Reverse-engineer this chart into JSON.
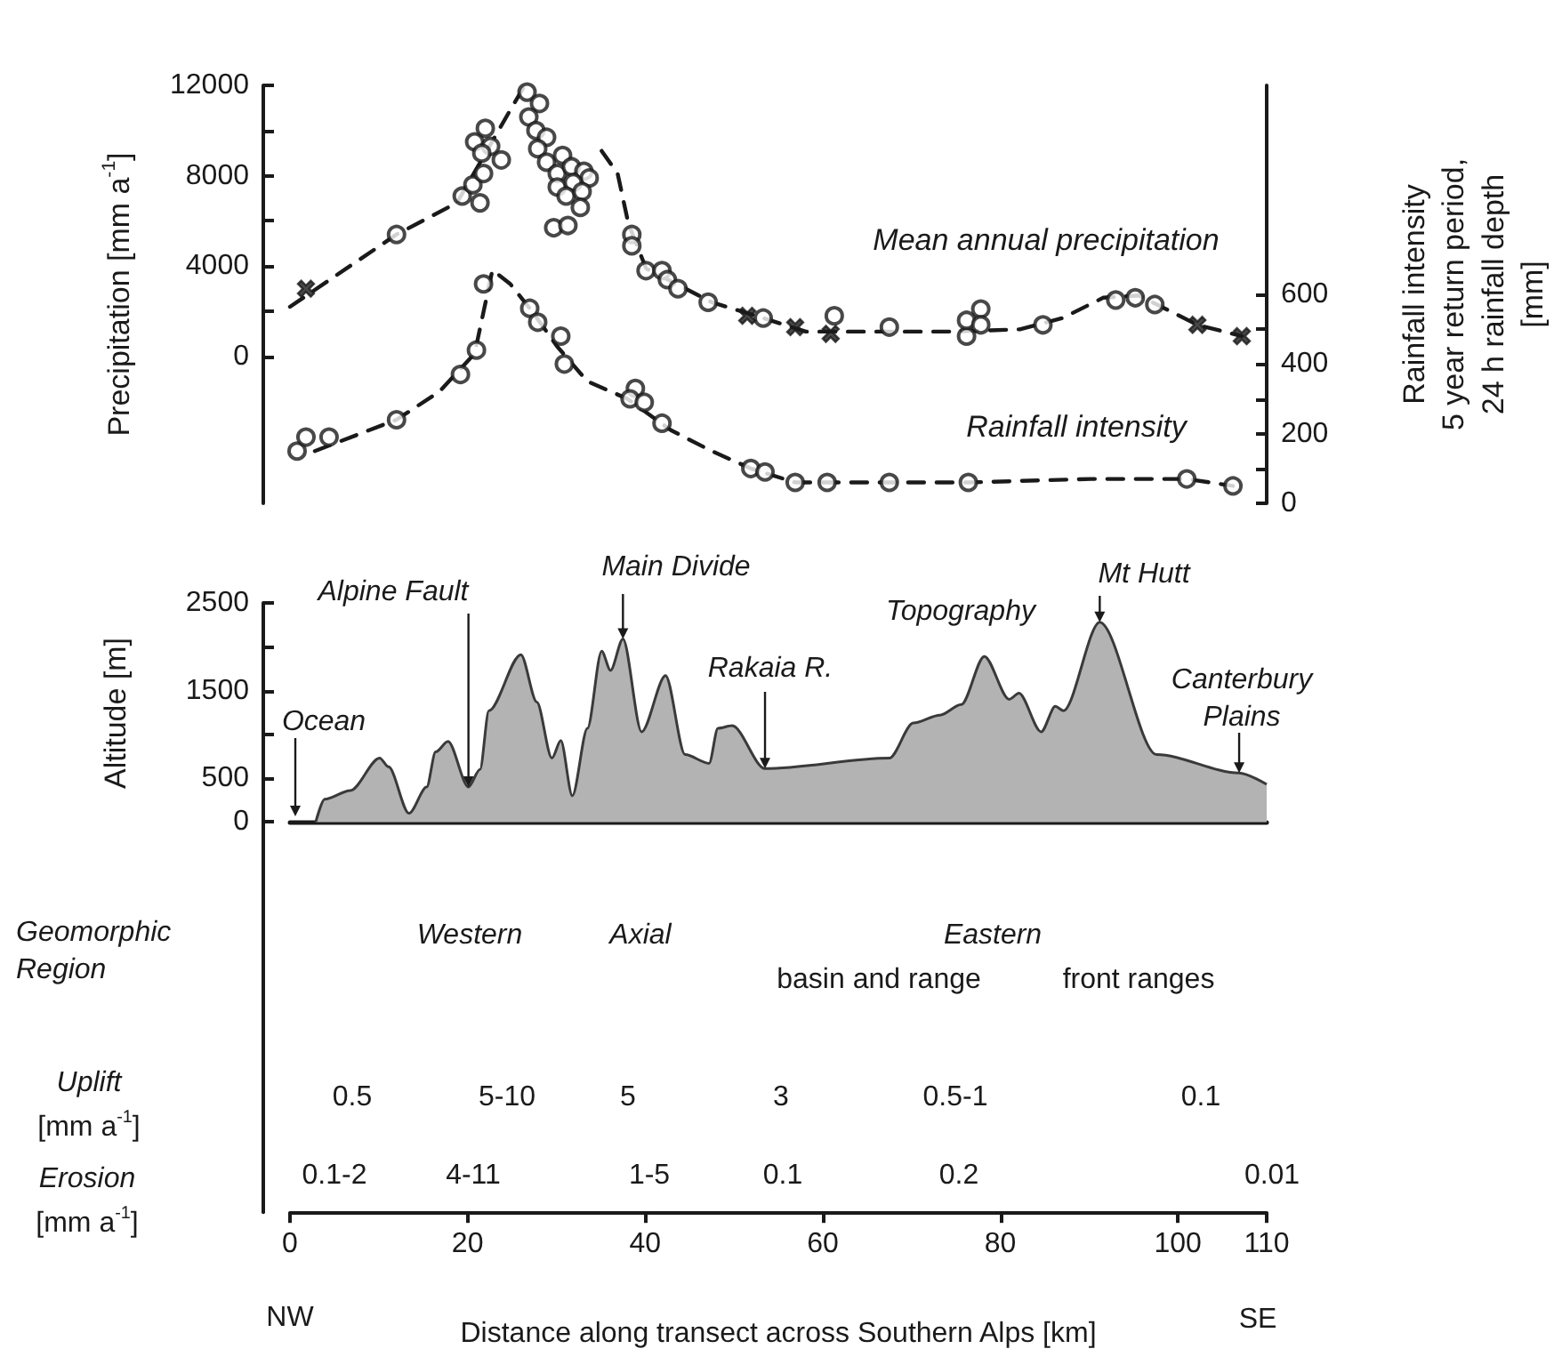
{
  "chart_data": [
    {
      "type": "scatter",
      "ylabel": "Precipitation [mm a$^{-1}$]",
      "y2label": "Rainfall intensity\n5 year return period,\n24 h rainfall depth\n[mm]",
      "annotations": [
        "Mean annual precipitation",
        "Rainfall intensity"
      ],
      "xlim": [
        0,
        110
      ],
      "ylim": [
        -6500,
        12000
      ],
      "yticks": [
        0,
        {
          "value": 2000,
          "label": null
        },
        4000,
        {
          "value": 6000,
          "label": null
        },
        8000,
        {
          "value": 10000,
          "label": null
        },
        12000
      ],
      "y2lim": [
        0,
        1200
      ],
      "y2ticks": [
        0,
        {
          "value": 100,
          "label": null
        },
        200,
        {
          "value": 300,
          "label": null
        },
        400,
        {
          "value": 500,
          "label": null
        },
        600
      ],
      "tick_labels": "y",
      "series": [
        {
          "type": "scatter",
          "marker": "circle",
          "color": "#1a1a1a",
          "x": [
            12.0,
            19.4,
            21.4,
            20.6,
            21.8,
            20.8,
            22.0,
            22.6,
            21.6,
            23.8,
            26.7,
            28.1,
            26.9,
            27.7,
            28.9,
            27.9,
            28.9,
            30.7,
            30.1,
            30.1,
            31.7,
            33.1,
            33.7,
            31.9,
            31.1,
            32.9,
            32.7,
            29.7,
            31.3,
            38.5,
            38.5,
            40.1,
            41.9,
            42.5,
            43.7,
            47.1,
            53.3,
            61.3,
            67.5,
            76.2,
            76.2,
            77.8,
            77.8,
            84.8,
            93.0,
            95.2,
            97.4
          ],
          "values": [
            5400,
            7100,
            6800,
            7600,
            8100,
            9500,
            10100,
            9300,
            9000,
            8700,
            11700,
            11200,
            10600,
            10000,
            9700,
            9200,
            8600,
            8900,
            8100,
            7500,
            8400,
            8200,
            7900,
            7700,
            7100,
            7300,
            6600,
            5700,
            5800,
            5400,
            4900,
            3800,
            3800,
            3400,
            3000,
            2400,
            1700,
            1800,
            1300,
            900,
            1600,
            2100,
            1400,
            1400,
            2500,
            2600,
            2300
          ]
        },
        {
          "type": "scatter",
          "marker": "cross",
          "color": "#1a1a1a",
          "x": [
            1.8,
            51.5,
            56.9,
            60.9,
            102.2,
            107.2
          ],
          "values": [
            3000,
            1800,
            1300,
            1000,
            1400,
            900
          ]
        },
        {
          "type": "line",
          "line_style": "dashed",
          "marker": "none",
          "color": "#1a1a1a",
          "x": [
            0,
            12,
            18.8,
            24.8,
            26.3,
            30,
            35.1,
            36.9,
            38.1,
            40.1,
            47.5,
            53.3,
            58.1,
            67.5,
            74.1,
            82.2,
            87,
            91.6,
            95.6,
            102.2,
            107.2
          ],
          "values": [
            2200,
            5400,
            6800,
            10900,
            11900,
            null,
            9100,
            8100,
            5900,
            3900,
            2400,
            1700,
            1100,
            1100,
            1100,
            1200,
            1700,
            2600,
            2700,
            1400,
            900
          ]
        },
        {
          "type": "scatter",
          "axis": "y2",
          "marker": "circle",
          "color": "#1a1a1a",
          "x": [
            0.8,
            1.8,
            4.4,
            12.0,
            19.2,
            21.0,
            21.8,
            27.0,
            27.9,
            30.5,
            30.9,
            38.9,
            38.3,
            39.9,
            41.9,
            51.9,
            53.5,
            56.9,
            60.5,
            67.5,
            76.4,
            101.0,
            106.2
          ],
          "values": [
            150,
            190,
            190,
            240,
            370,
            440,
            630,
            560,
            520,
            480,
            400,
            330,
            300,
            290,
            230,
            100,
            90,
            60,
            60,
            60,
            60,
            70,
            50
          ]
        },
        {
          "type": "line",
          "axis": "y2",
          "line_style": "dashed",
          "marker": "none",
          "color": "#1a1a1a",
          "x": [
            2.8,
            12,
            16.8,
            20.8,
            22.8,
            24.8,
            27.3,
            30.1,
            33.5,
            38,
            42.9,
            47.5,
            51.9,
            56.9,
            67.5,
            76.4,
            90.2,
            101,
            106.2
          ],
          "values": [
            150,
            240,
            320,
            430,
            670,
            630,
            550,
            450,
            350,
            300,
            210,
            150,
            100,
            60,
            60,
            60,
            70,
            70,
            50
          ]
        }
      ]
    },
    {
      "type": "area",
      "ylabel": "Altitude [m]",
      "xlabel": "Distance along transect across Southern Alps [km]",
      "xlim": [
        0,
        110
      ],
      "xticks": [
        0,
        20,
        40,
        60,
        80,
        100,
        110
      ],
      "ylim": [
        -4450,
        2500
      ],
      "yticks": [
        0,
        500,
        {
          "value": 1000,
          "label": null
        },
        1500,
        {
          "value": 2000,
          "label": null
        },
        2500
      ],
      "color": "#b3b3b3",
      "annotations": [
        "Ocean",
        {
          "text": "Alpine Fault",
          "x": 20.1,
          "y": 400
        },
        {
          "text": "Main Divide",
          "x": 37.5,
          "y": 2090
        },
        {
          "text": "Rakaia R.",
          "x": 53.5,
          "y": 610
        },
        "Topography",
        {
          "text": "Mt Hutt",
          "x": 91.2,
          "y": 2280
        },
        {
          "text": "Canterbury\nPlains",
          "x": 106.9,
          "y": 560
        },
        "NW",
        "SE"
      ],
      "x": [
        2.9,
        3.9,
        6.8,
        10.1,
        11.1,
        13.4,
        15.4,
        16.4,
        17.8,
        20.1,
        21.4,
        22.4,
        26.0,
        27.8,
        29.5,
        30.5,
        31.8,
        33.5,
        35.1,
        36.1,
        37.5,
        39.6,
        42.3,
        44.5,
        47.2,
        48.2,
        49.8,
        53.5,
        67.5,
        70.2,
        73.2,
        75.6,
        78.2,
        81.0,
        82.1,
        84.6,
        86.2,
        87.1,
        91.2,
        97.6,
        106.9,
        110
      ],
      "values": [
        0,
        260,
        360,
        730,
        630,
        100,
        400,
        800,
        920,
        400,
        600,
        1270,
        1910,
        1370,
        730,
        930,
        300,
        1070,
        1950,
        1730,
        2090,
        1030,
        1670,
        770,
        670,
        1070,
        1100,
        610,
        730,
        1130,
        1220,
        1340,
        1890,
        1400,
        1470,
        1030,
        1320,
        1270,
        2280,
        770,
        560,
        430
      ]
    },
    {
      "type": "other",
      "annotations": [
        "Geomorphic\nRegion",
        "Western",
        "Axial",
        "Eastern",
        "basin and range",
        "front ranges",
        "Uplift",
        "[mm a$^{-1}$]",
        "0.5",
        "5-10",
        "5",
        "3",
        "0.5-1",
        "0.1",
        "Erosion",
        "[mm a$^{-1}$]",
        "0.1-2",
        "4-11",
        "1-5",
        "0.1",
        "0.2",
        "0.01"
      ]
    }
  ]
}
